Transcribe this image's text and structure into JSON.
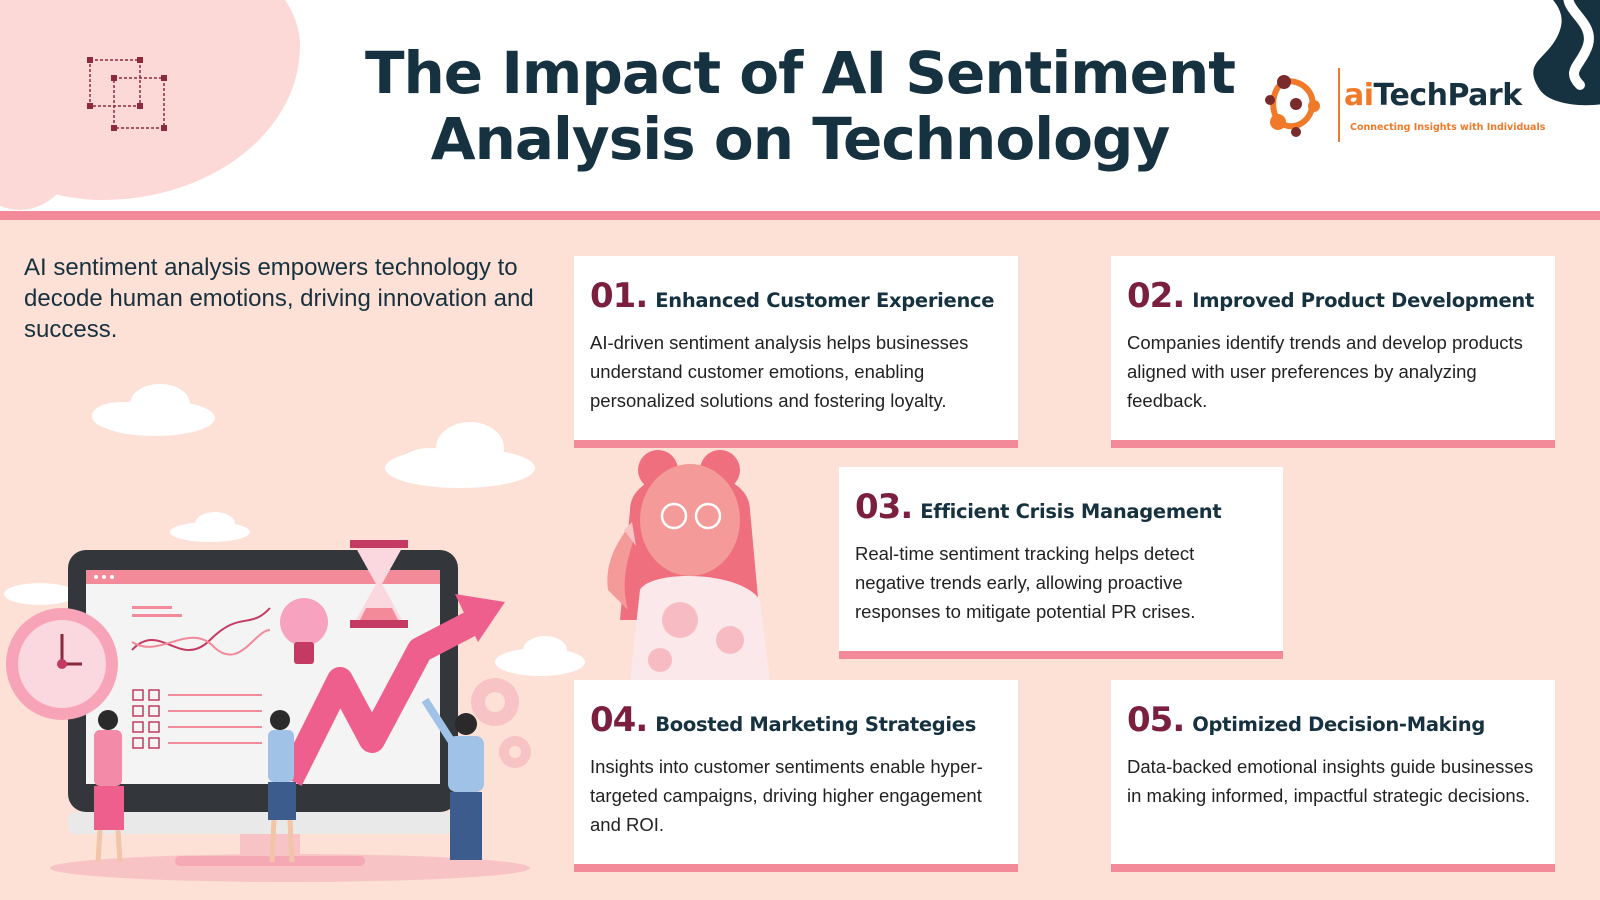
{
  "header": {
    "title_line1": "The Impact of AI Sentiment",
    "title_line2": "Analysis on Technology"
  },
  "logo": {
    "brand_ai": "ai",
    "brand_rest": "TechPark",
    "tagline": "Connecting Insights with Individuals"
  },
  "intro": "AI sentiment analysis empowers technology to decode human emotions, driving innovation and success.",
  "cards": [
    {
      "num": "01.",
      "title": "Enhanced Customer Experience",
      "desc": "AI-driven sentiment analysis helps businesses understand customer emotions, enabling personalized solutions and fostering loyalty."
    },
    {
      "num": "02.",
      "title": "Improved Product Development",
      "desc": "Companies identify trends and develop products aligned with user preferences by analyzing feedback."
    },
    {
      "num": "03.",
      "title": "Efficient Crisis Management",
      "desc": "Real-time sentiment tracking helps detect negative trends early, allowing proactive responses to mitigate potential PR crises."
    },
    {
      "num": "04.",
      "title": "Boosted Marketing Strategies",
      "desc": "Insights into customer sentiments enable hyper-targeted campaigns, driving higher engagement and ROI."
    },
    {
      "num": "05.",
      "title": "Optimized Decision-Making",
      "desc": "Data-backed emotional insights guide businesses in making informed, impactful strategic decisions."
    }
  ],
  "colors": {
    "background": "#fde1d6",
    "accent_pink": "#f28a9a",
    "number_maroon": "#7b1f3f",
    "title_navy": "#16313f",
    "brand_orange": "#f07a2a"
  }
}
